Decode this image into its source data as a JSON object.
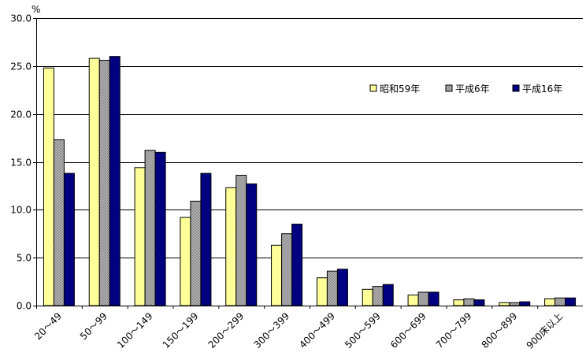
{
  "chart_data": {
    "type": "bar",
    "title": "",
    "xlabel": "",
    "ylabel": "%",
    "ylim": [
      0,
      30
    ],
    "yticks": [
      "0.0",
      "5.0",
      "10.0",
      "15.0",
      "20.0",
      "25.0",
      "30.0"
    ],
    "grid": true,
    "legend_position": "top-right",
    "categories": [
      "20～49",
      "50～99",
      "100～149",
      "150～199",
      "200～299",
      "300～399",
      "400～499",
      "500～599",
      "600～699",
      "700～799",
      "800～899",
      "900床以上"
    ],
    "series": [
      {
        "name": "昭和59年",
        "color": "#FFFF99",
        "values": [
          24.8,
          25.8,
          14.4,
          9.2,
          12.3,
          6.3,
          2.9,
          1.7,
          1.1,
          0.6,
          0.3,
          0.7
        ]
      },
      {
        "name": "平成6年",
        "color": "#A0A0A0",
        "values": [
          17.3,
          25.6,
          16.2,
          10.9,
          13.6,
          7.5,
          3.6,
          2.0,
          1.4,
          0.7,
          0.3,
          0.8
        ]
      },
      {
        "name": "平成16年",
        "color": "#000080",
        "values": [
          13.8,
          26.0,
          16.0,
          13.8,
          12.7,
          8.5,
          3.8,
          2.2,
          1.4,
          0.6,
          0.4,
          0.8
        ]
      }
    ]
  }
}
